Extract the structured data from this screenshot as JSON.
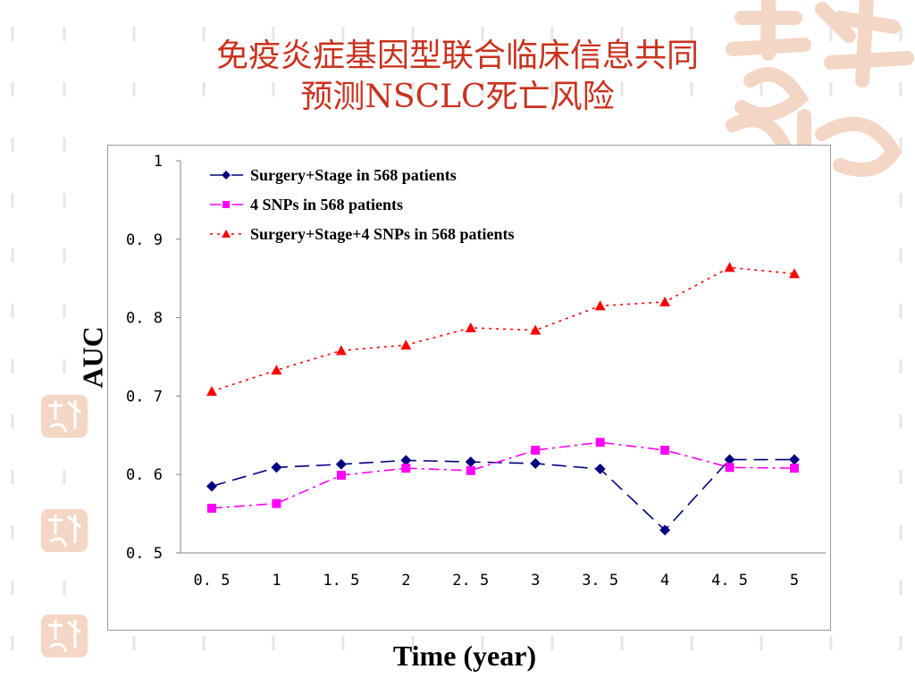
{
  "slide": {
    "title_line1": "免疫炎症基因型联合临床信息共同",
    "title_line2": "预测NSCLC死亡风险",
    "title_color": "#c8321e",
    "decor_color": "#f4d6c4"
  },
  "chart_data": {
    "type": "line",
    "xlabel": "Time (year)",
    "ylabel": "AUC",
    "x": [
      0.5,
      1,
      1.5,
      2,
      2.5,
      3,
      3.5,
      4,
      4.5,
      5
    ],
    "x_tick_labels": [
      "0.5",
      "1",
      "1.5",
      "2",
      "2.5",
      "3",
      "3.5",
      "4",
      "4.5",
      "5"
    ],
    "y_tick_labels": [
      "0.5",
      "0.6",
      "0.7",
      "0.8",
      "0.9",
      "1"
    ],
    "ylim": [
      0.5,
      1
    ],
    "grid": false,
    "legend_position": "top-left",
    "series": [
      {
        "name": "Surgery+Stage in 568 patients",
        "color": "#000080",
        "marker": "diamond",
        "line": "long-dash",
        "values": [
          0.585,
          0.609,
          0.613,
          0.618,
          0.616,
          0.614,
          0.607,
          0.529,
          0.619,
          0.619
        ]
      },
      {
        "name": "4 SNPs in 568 patients",
        "color": "#ff00ff",
        "marker": "square",
        "line": "dash-dot",
        "values": [
          0.557,
          0.563,
          0.599,
          0.608,
          0.605,
          0.631,
          0.641,
          0.631,
          0.609,
          0.608
        ]
      },
      {
        "name": "Surgery+Stage+4 SNPs in 568 patients",
        "color": "#ff0000",
        "marker": "triangle",
        "line": "dotted",
        "values": [
          0.706,
          0.733,
          0.758,
          0.765,
          0.787,
          0.784,
          0.815,
          0.82,
          0.864,
          0.856
        ]
      }
    ]
  }
}
